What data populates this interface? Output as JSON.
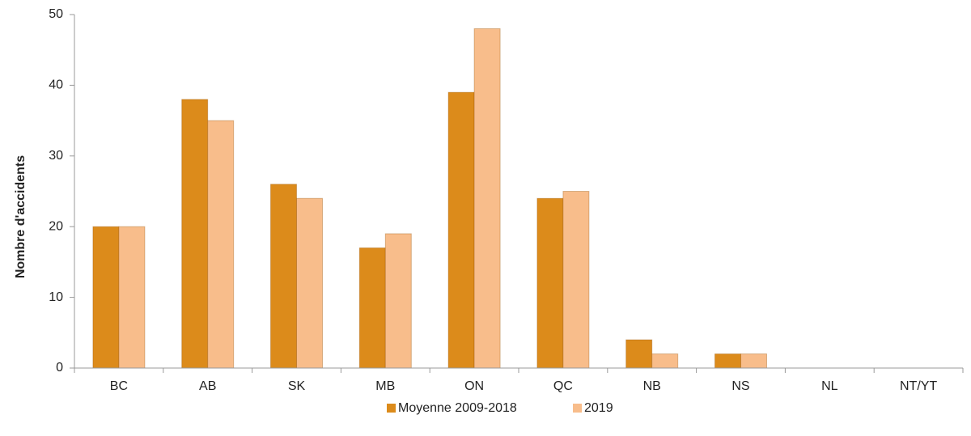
{
  "chart_data": {
    "type": "bar",
    "y_label": "Nombre d'accidents",
    "categories": [
      "BC",
      "AB",
      "SK",
      "MB",
      "ON",
      "QC",
      "NB",
      "NS",
      "NL",
      "NT/YT"
    ],
    "series": [
      {
        "name": "Moyenne 2009-2018",
        "color": "#dc8b1b",
        "values": [
          20,
          38,
          26,
          17,
          39,
          24,
          4,
          2,
          0,
          0
        ]
      },
      {
        "name": "2019",
        "color": "#f8bd8b",
        "values": [
          20,
          35,
          24,
          19,
          48,
          25,
          2,
          2,
          0,
          0
        ]
      }
    ],
    "ylim": [
      0,
      50
    ],
    "yticks": [
      0,
      10,
      20,
      30,
      40,
      50
    ],
    "grid": false
  }
}
